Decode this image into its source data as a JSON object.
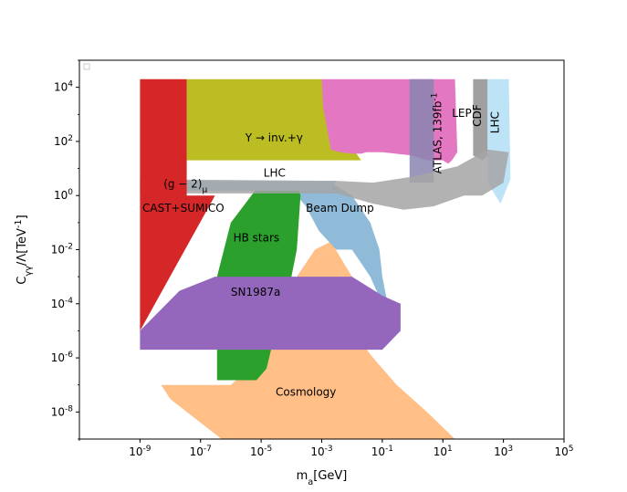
{
  "chart_data": {
    "type": "area",
    "title": "",
    "xlabel": "m_a[GeV]",
    "ylabel": "C_γγ/Λ[TeV^-1]",
    "x_scale": "log",
    "y_scale": "log",
    "xlim": [
      1e-11,
      100000.0
    ],
    "ylim": [
      1e-09,
      100000.0
    ],
    "x_ticks": [
      "10^-9",
      "10^-7",
      "10^-5",
      "10^-3",
      "10^-1",
      "10^1",
      "10^3",
      "10^5"
    ],
    "x_tick_values": [
      1e-09,
      1e-07,
      1e-05,
      0.001,
      0.1,
      10.0,
      1000.0,
      100000.0
    ],
    "y_ticks": [
      "10^4",
      "10^2",
      "10^0",
      "10^-2",
      "10^-4",
      "10^-6",
      "10^-8"
    ],
    "y_tick_values": [
      10000.0,
      100.0,
      1.0,
      0.01,
      0.0001,
      1e-06,
      1e-08
    ],
    "grid": false,
    "legend": "top-left",
    "regions": [
      {
        "id": "cosmology",
        "label": "Cosmology",
        "color": "#ffbf86",
        "label_at": [
          3e-05,
          4e-08
        ],
        "polygon": [
          [
            2e-09,
            1e-07
          ],
          [
            1e-06,
            1e-07
          ],
          [
            1e-05,
            1e-06
          ],
          [
            5e-05,
            0.0001
          ],
          [
            0.00015,
            0.001
          ],
          [
            0.0006,
            0.01
          ],
          [
            0.002,
            0.02
          ],
          [
            0.01,
            0.001
          ],
          [
            0.02,
            0.0001
          ],
          [
            0.01,
            1e-05
          ],
          [
            0.05,
            1e-06
          ],
          [
            0.3,
            1e-07
          ],
          [
            3,
            1e-08
          ],
          [
            25,
            1e-09
          ],
          [
            5e-07,
            1e-09
          ],
          [
            1e-08,
            3e-08
          ],
          [
            5e-09,
            1e-07
          ]
        ]
      },
      {
        "id": "beam-dump",
        "label": "Beam Dump",
        "color": "#8fbbd9",
        "label_at": [
          0.0003,
          0.25
        ],
        "polygon": [
          [
            0.00015,
            3
          ],
          [
            0.002,
            3
          ],
          [
            0.01,
            1
          ],
          [
            0.04,
            0.1
          ],
          [
            0.08,
            0.01
          ],
          [
            0.1,
            0.001
          ],
          [
            0.15,
            0.0001
          ],
          [
            0.1,
            0.0001
          ],
          [
            0.04,
            0.001
          ],
          [
            0.01,
            0.01
          ],
          [
            0.003,
            0.01
          ],
          [
            0.0008,
            0.05
          ],
          [
            0.0003,
            0.4
          ],
          [
            0.00015,
            1
          ]
        ]
      },
      {
        "id": "hb-stars",
        "label": "HB stars",
        "color": "#2ca02c",
        "label_at": [
          1.2e-06,
          0.02
        ],
        "polygon": [
          [
            3.5e-07,
            1.5e-07
          ],
          [
            7e-06,
            1.5e-07
          ],
          [
            1.5e-05,
            4e-07
          ],
          [
            3e-05,
            1e-05
          ],
          [
            5e-05,
            0.0001
          ],
          [
            0.0001,
            0.001
          ],
          [
            0.00015,
            0.01
          ],
          [
            0.0002,
            1
          ],
          [
            0.00015,
            3
          ],
          [
            1e-05,
            3
          ],
          [
            1e-06,
            0.1
          ],
          [
            3.5e-07,
            0.001
          ]
        ]
      },
      {
        "id": "lhc-small",
        "label": "LHC",
        "color": "#a3d1f0",
        "label_at": [
          1.2e-05,
          5
        ],
        "polygon": [
          [
            3.5e-08,
            3.5
          ],
          [
            0.003,
            3.5
          ],
          [
            0.002,
            1.5
          ],
          [
            3.5e-08,
            1.5
          ]
        ]
      },
      {
        "id": "upsilon",
        "label": "Υ → inv.+γ",
        "color": "#bcbd22",
        "label_at": [
          3e-06,
          100
        ],
        "polygon": [
          [
            3.5e-08,
            20000
          ],
          [
            0.001,
            20000
          ],
          [
            0.002,
            5000
          ],
          [
            0.005,
            500
          ],
          [
            0.01,
            60
          ],
          [
            0.02,
            20
          ],
          [
            3.5e-08,
            20
          ]
        ]
      },
      {
        "id": "lep",
        "label": "LEP",
        "color": "#e377c2",
        "label_at": [
          20,
          800
        ],
        "polygon": [
          [
            0.001,
            20000
          ],
          [
            25,
            20000
          ],
          [
            30,
            40
          ],
          [
            20,
            20
          ],
          [
            15,
            15
          ],
          [
            10,
            20
          ],
          [
            3,
            20
          ],
          [
            1,
            30
          ],
          [
            0.1,
            40
          ],
          [
            0.03,
            40
          ],
          [
            0.02,
            35
          ],
          [
            0.01,
            35
          ],
          [
            0.004,
            40
          ],
          [
            0.002,
            50
          ],
          [
            0.0011,
            2000
          ]
        ]
      },
      {
        "id": "atlas",
        "label": "ATLAS, 139fb^-1",
        "color": "#8a85b0",
        "label_at": [
          9,
          200
        ],
        "polygon": [
          [
            0.8,
            20000
          ],
          [
            5,
            20000
          ],
          [
            5,
            3
          ],
          [
            0.8,
            3
          ]
        ]
      },
      {
        "id": "cdf",
        "label": "CDF",
        "color": "#a0a0a0",
        "label_at": [
          180,
          900
        ],
        "polygon": [
          [
            100,
            20000
          ],
          [
            300,
            20000
          ],
          [
            300,
            30
          ],
          [
            200,
            20
          ],
          [
            100,
            30
          ]
        ]
      },
      {
        "id": "lhc-large",
        "label": "LHC",
        "color": "#bde3f7",
        "label_at": [
          700,
          500
        ],
        "polygon": [
          [
            300,
            20000
          ],
          [
            1500,
            20000
          ],
          [
            1700,
            4
          ],
          [
            800,
            0.5
          ],
          [
            300,
            3
          ]
        ]
      },
      {
        "id": "g-2",
        "label": "(g − 2)_μ",
        "color": "#a5a5a5",
        "label_at": [
          6e-09,
          2
        ],
        "polygon": [
          [
            1e-09,
            4
          ],
          [
            0.003,
            3.5
          ],
          [
            0.05,
            3
          ],
          [
            1,
            5
          ],
          [
            30,
            12
          ],
          [
            300,
            50
          ],
          [
            1500,
            40
          ],
          [
            1000,
            3
          ],
          [
            200,
            1
          ],
          [
            50,
            1
          ],
          [
            5,
            0.4
          ],
          [
            0.5,
            0.3
          ],
          [
            0.05,
            0.5
          ],
          [
            0.003,
            1.2
          ],
          [
            1e-09,
            1.2
          ]
        ]
      },
      {
        "id": "sn1987a",
        "label": "SN1987a",
        "color": "#9467bd",
        "label_at": [
          1e-06,
          0.0002
        ],
        "polygon": [
          [
            1e-09,
            1e-05
          ],
          [
            2e-08,
            0.0003
          ],
          [
            3e-07,
            0.001
          ],
          [
            0.01,
            0.001
          ],
          [
            0.1,
            0.0002
          ],
          [
            0.4,
            0.0001
          ],
          [
            0.4,
            1e-05
          ],
          [
            0.1,
            2e-06
          ],
          [
            0.01,
            2e-06
          ],
          [
            1e-09,
            2e-06
          ]
        ]
      },
      {
        "id": "cast-sumico",
        "label": "CAST+SUMICO",
        "color": "#d62728",
        "label_at": [
          1.2e-09,
          0.25
        ],
        "polygon": [
          [
            1e-09,
            20000
          ],
          [
            3.5e-08,
            20000
          ],
          [
            3.5e-08,
            1
          ],
          [
            3e-07,
            1
          ],
          [
            1e-09,
            1e-05
          ]
        ]
      }
    ]
  }
}
